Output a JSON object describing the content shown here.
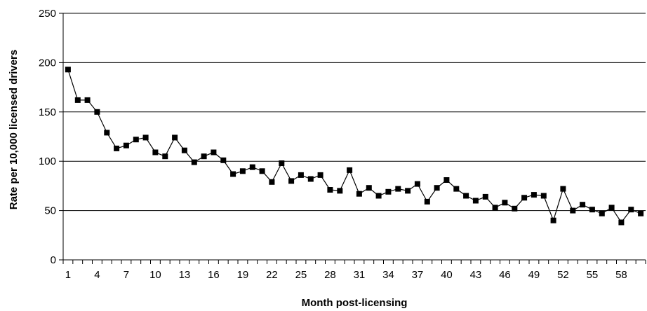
{
  "chart_data": {
    "type": "line",
    "title": "",
    "xlabel": "Month post-licensing",
    "ylabel": "Rate per 10,000 licensed drivers",
    "ylim": [
      0,
      250
    ],
    "yticks": [
      0,
      50,
      100,
      150,
      200,
      250
    ],
    "xtick_labels": [
      "1",
      "4",
      "7",
      "10",
      "13",
      "16",
      "19",
      "22",
      "25",
      "28",
      "31",
      "34",
      "37",
      "40",
      "43",
      "46",
      "49",
      "52",
      "55",
      "58"
    ],
    "grid": "horizontal",
    "legend": "none",
    "line_color": "#000000",
    "marker": "square",
    "x": [
      1,
      2,
      3,
      4,
      5,
      6,
      7,
      8,
      9,
      10,
      11,
      12,
      13,
      14,
      15,
      16,
      17,
      18,
      19,
      20,
      21,
      22,
      23,
      24,
      25,
      26,
      27,
      28,
      29,
      30,
      31,
      32,
      33,
      34,
      35,
      36,
      37,
      38,
      39,
      40,
      41,
      42,
      43,
      44,
      45,
      46,
      47,
      48,
      49,
      50,
      51,
      52,
      53,
      54,
      55,
      56,
      57,
      58,
      59,
      60
    ],
    "values": [
      193,
      162,
      162,
      150,
      129,
      113,
      116,
      122,
      124,
      109,
      105,
      124,
      111,
      99,
      105,
      109,
      101,
      87,
      90,
      94,
      90,
      79,
      98,
      80,
      86,
      82,
      86,
      71,
      70,
      91,
      67,
      73,
      65,
      69,
      72,
      70,
      77,
      59,
      73,
      81,
      72,
      65,
      60,
      64,
      53,
      58,
      52,
      63,
      66,
      65,
      40,
      72,
      50,
      56,
      51,
      47,
      53,
      38,
      51,
      47
    ]
  }
}
